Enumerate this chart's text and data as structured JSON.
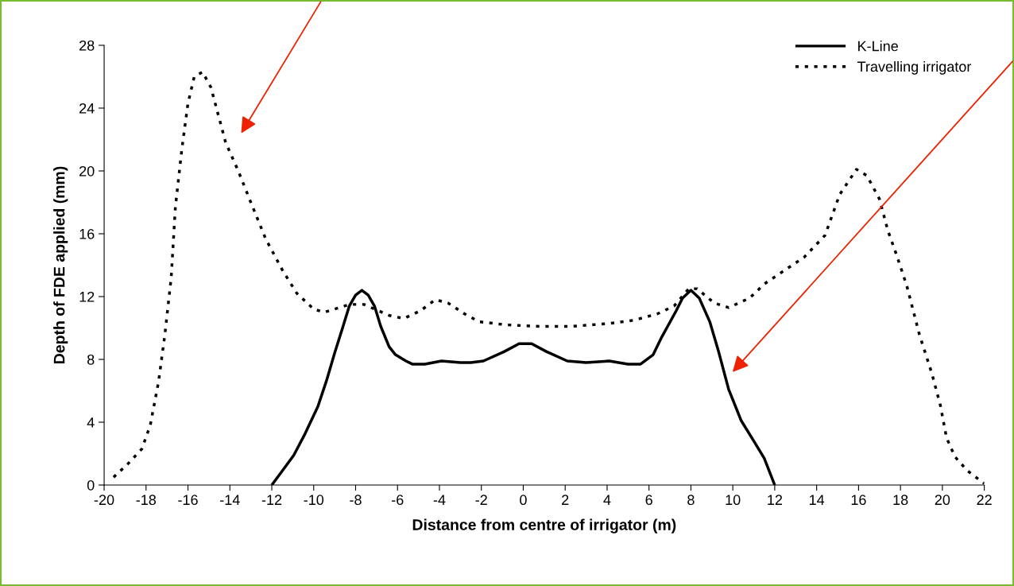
{
  "chart_data": {
    "type": "line",
    "xlabel": "Distance from centre of irrigator (m)",
    "ylabel": "Depth of FDE applied (mm)",
    "xlim": [
      -20,
      22
    ],
    "xticks": [
      -20,
      -18,
      -16,
      -14,
      -12,
      -10,
      -8,
      -6,
      -4,
      -2,
      0,
      2,
      4,
      6,
      8,
      10,
      12,
      14,
      16,
      18,
      20,
      22
    ],
    "ylim": [
      0,
      28
    ],
    "yticks": [
      0,
      4,
      8,
      12,
      16,
      20,
      24,
      28
    ],
    "grid": false,
    "legend": "top right",
    "marker": "none",
    "series": [
      {
        "name": "K-Line",
        "color": "#000000",
        "line_style": "solid",
        "x": [
          -12,
          -11.5,
          -10.95,
          -10.4,
          -9.8,
          -9.4,
          -9.0,
          -8.6,
          -8.3,
          -8.0,
          -7.7,
          -7.4,
          -7.1,
          -6.8,
          -6.4,
          -6.1,
          -5.6,
          -5.3,
          -4.7,
          -3.9,
          -3.0,
          -2.5,
          -1.9,
          -0.9,
          -0.2,
          0.4,
          1.1,
          2.1,
          3.0,
          4.1,
          5.0,
          5.6,
          6.2,
          6.6,
          7.3,
          7.6,
          8.0,
          8.4,
          8.9,
          9.3,
          9.8,
          10.4,
          11.0,
          11.5,
          12.0
        ],
        "values": [
          0,
          0.9,
          1.9,
          3.3,
          5.0,
          6.6,
          8.4,
          10.1,
          11.4,
          12.1,
          12.4,
          12.1,
          11.4,
          10.1,
          8.8,
          8.3,
          7.9,
          7.7,
          7.7,
          7.9,
          7.8,
          7.8,
          7.9,
          8.5,
          9.0,
          9.0,
          8.5,
          7.9,
          7.8,
          7.9,
          7.7,
          7.7,
          8.3,
          9.4,
          11.1,
          11.9,
          12.4,
          11.9,
          10.4,
          8.6,
          6.1,
          4.1,
          2.8,
          1.7,
          0
        ]
      },
      {
        "name": "Travelling irrigator",
        "color": "#000000",
        "line_style": "dotted",
        "x": [
          -19.55,
          -18.9,
          -18.2,
          -17.8,
          -17.4,
          -17.1,
          -16.8,
          -16.6,
          -16.3,
          -16.0,
          -15.7,
          -15.3,
          -14.9,
          -14.6,
          -14.2,
          -13.6,
          -13.0,
          -12.3,
          -11.5,
          -10.8,
          -10.0,
          -9.5,
          -8.3,
          -7.6,
          -6.4,
          -5.7,
          -4.9,
          -4.2,
          -3.6,
          -2.8,
          -2.1,
          -0.8,
          0.8,
          2.3,
          4.2,
          5.3,
          6.4,
          7.2,
          7.9,
          8.3,
          9.1,
          9.8,
          10.8,
          11.5,
          12.5,
          13.4,
          14.4,
          15.1,
          15.9,
          16.4,
          17.0,
          17.4,
          17.8,
          18.3,
          18.9,
          19.5,
          19.9,
          20.2,
          20.6,
          21.2,
          22.0
        ],
        "values": [
          0.5,
          1.3,
          2.3,
          3.8,
          6.6,
          9.6,
          13.2,
          17.7,
          21.3,
          24.3,
          26.0,
          26.3,
          25.3,
          23.8,
          21.8,
          20.0,
          18.0,
          15.7,
          13.7,
          12.2,
          11.2,
          11.0,
          11.5,
          11.5,
          10.8,
          10.6,
          11.1,
          11.8,
          11.6,
          10.9,
          10.4,
          10.2,
          10.1,
          10.1,
          10.3,
          10.5,
          10.9,
          11.4,
          12.5,
          12.5,
          11.6,
          11.3,
          11.9,
          12.8,
          13.7,
          14.5,
          15.9,
          18.5,
          20.1,
          19.7,
          18.2,
          16.2,
          14.7,
          12.7,
          9.6,
          7.1,
          5.1,
          3.0,
          1.8,
          0.9,
          0.1
        ]
      }
    ]
  }
}
